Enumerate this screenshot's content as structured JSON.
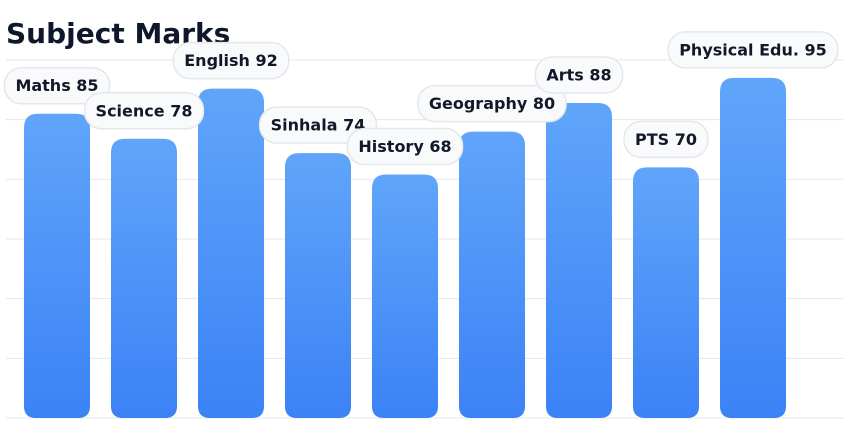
{
  "chart_data": {
    "type": "bar",
    "title": "Subject Marks",
    "categories": [
      "Maths",
      "Science",
      "English",
      "Sinhala",
      "History",
      "Geography",
      "Arts",
      "PTS",
      "Physical Edu."
    ],
    "values": [
      85,
      78,
      92,
      74,
      68,
      80,
      88,
      70,
      95
    ],
    "ylim": [
      0,
      100
    ],
    "grid": true,
    "legend": "none",
    "colors": {
      "bar_top": "#60a5fa",
      "bar_bottom": "#3b82f6",
      "label_bg": "#f9fafb",
      "label_border": "#e5e7eb",
      "grid": "#e5e7eb"
    }
  }
}
